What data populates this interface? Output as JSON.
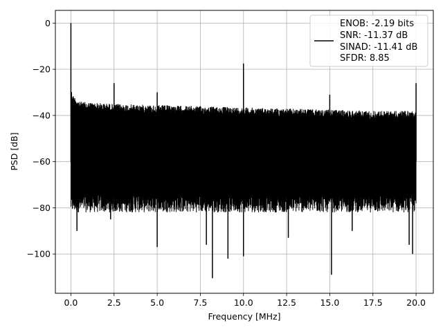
{
  "chart_data": {
    "type": "line",
    "title": "",
    "xlabel": "Frequency [MHz]",
    "ylabel": "PSD [dB]",
    "xlim": [
      -0.9,
      21.0
    ],
    "ylim": [
      -117,
      5.5
    ],
    "x_ticks": [
      0.0,
      2.5,
      5.0,
      7.5,
      10.0,
      12.5,
      15.0,
      17.5,
      20.0
    ],
    "x_tick_labels": [
      "0.0",
      "2.5",
      "5.0",
      "7.5",
      "10.0",
      "12.5",
      "15.0",
      "17.5",
      "20.0"
    ],
    "y_ticks": [
      0,
      -20,
      -40,
      -60,
      -80,
      -100
    ],
    "y_tick_labels": [
      "0",
      "−20",
      "−40",
      "−60",
      "−80",
      "−100"
    ],
    "grid": true,
    "legend": {
      "placement": "upper right",
      "entries": [
        "ENOB: -2.19 bits",
        "SNR: -11.37 dB",
        "SINAD: -11.41 dB",
        "SFDR: 8.85"
      ]
    },
    "series": [
      {
        "color": "#000000",
        "x_range": [
          0.0,
          20.0
        ],
        "noise_upper_envelope": {
          "x": [
            0.0,
            0.1,
            0.5,
            2.5,
            5.0,
            7.5,
            10.0,
            12.5,
            15.0,
            17.5,
            20.0
          ],
          "y": [
            -28,
            -31,
            -34,
            -35,
            -35.5,
            -36,
            -36.5,
            -37,
            -37.5,
            -38,
            -38
          ]
        },
        "noise_lower_level_db": -78,
        "peaks": [
          {
            "x": 0.0,
            "y": 0
          },
          {
            "x": 2.5,
            "y": -26
          },
          {
            "x": 5.0,
            "y": -30
          },
          {
            "x": 10.0,
            "y": -17.5
          },
          {
            "x": 15.0,
            "y": -31
          },
          {
            "x": 20.0,
            "y": -26
          }
        ],
        "dips": [
          {
            "x": 0.35,
            "y": -90
          },
          {
            "x": 2.3,
            "y": -85
          },
          {
            "x": 5.0,
            "y": -97
          },
          {
            "x": 7.85,
            "y": -96
          },
          {
            "x": 8.2,
            "y": -110.5
          },
          {
            "x": 9.1,
            "y": -102
          },
          {
            "x": 10.0,
            "y": -101
          },
          {
            "x": 12.6,
            "y": -93
          },
          {
            "x": 15.1,
            "y": -109
          },
          {
            "x": 16.3,
            "y": -90
          },
          {
            "x": 19.6,
            "y": -96
          },
          {
            "x": 19.8,
            "y": -100
          }
        ]
      }
    ]
  }
}
